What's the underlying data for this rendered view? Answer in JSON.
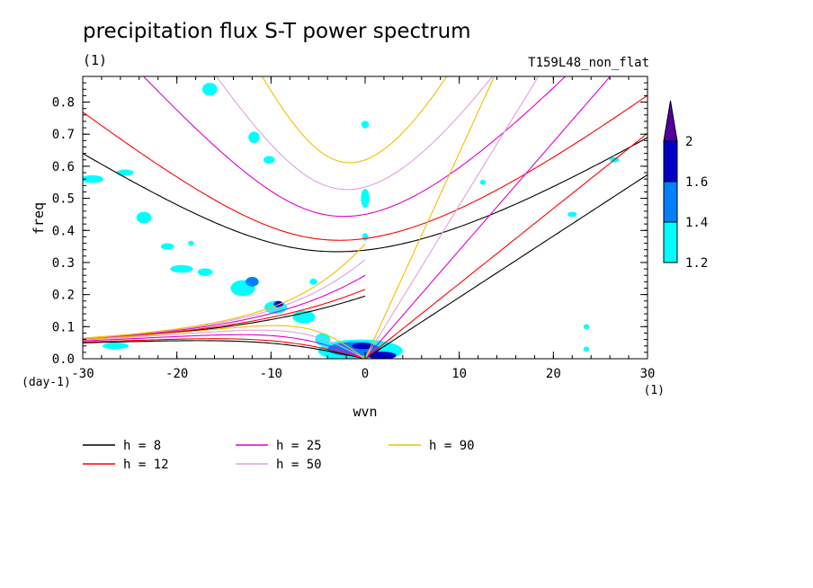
{
  "chart_data": {
    "type": "contour",
    "title": "precipitation flux S-T power spectrum",
    "subtitle_units": "(1)",
    "run_id": "T159L48_non_flat",
    "xlabel": "wvn",
    "ylabel": "freq",
    "x_units": "(1)",
    "y_units": "(day-1)",
    "xlim": [
      -30,
      30
    ],
    "ylim": [
      0,
      0.88
    ],
    "x_ticks": [
      "-30",
      "-20",
      "-10",
      "0",
      "10",
      "20",
      "30"
    ],
    "y_ticks": [
      "0.0",
      "0.1",
      "0.2",
      "0.3",
      "0.4",
      "0.5",
      "0.6",
      "0.7",
      "0.8"
    ],
    "colorbar": {
      "levels": [
        "1.2",
        "1.4",
        "1.6",
        "2"
      ],
      "colors": [
        "#00ffff",
        "#0080ff",
        "#0000c8",
        "#5000a0"
      ]
    },
    "dispersion_curves": [
      {
        "name": "h =  8",
        "h": 8,
        "color": "#000000"
      },
      {
        "name": "h = 12",
        "h": 12,
        "color": "#ff0000"
      },
      {
        "name": "h = 25",
        "h": 25,
        "color": "#e000d0"
      },
      {
        "name": "h = 50",
        "h": 50,
        "color": "#e0a0e0"
      },
      {
        "name": "h = 90",
        "h": 90,
        "color": "#f0c000"
      }
    ],
    "legend_position": "bottom-left",
    "contour_blobs": [
      {
        "x": -0.5,
        "y": 0.025,
        "rx": 4.5,
        "ry": 0.035,
        "level": 0
      },
      {
        "x": -1.2,
        "y": 0.03,
        "rx": 2.8,
        "ry": 0.022,
        "level": 1
      },
      {
        "x": 1.8,
        "y": 0.01,
        "rx": 1.5,
        "ry": 0.012,
        "level": 2
      },
      {
        "x": -0.2,
        "y": 0.04,
        "rx": 1.2,
        "ry": 0.01,
        "level": 2
      },
      {
        "x": -4.5,
        "y": 0.06,
        "rx": 0.8,
        "ry": 0.02,
        "level": 0
      },
      {
        "x": -9.5,
        "y": 0.16,
        "rx": 1.2,
        "ry": 0.02,
        "level": 0
      },
      {
        "x": -9.2,
        "y": 0.17,
        "rx": 0.5,
        "ry": 0.01,
        "level": 2
      },
      {
        "x": -13,
        "y": 0.22,
        "rx": 1.3,
        "ry": 0.025,
        "level": 0
      },
      {
        "x": -12,
        "y": 0.24,
        "rx": 0.7,
        "ry": 0.015,
        "level": 1
      },
      {
        "x": -6.5,
        "y": 0.13,
        "rx": 1.2,
        "ry": 0.02,
        "level": 0
      },
      {
        "x": -19.5,
        "y": 0.28,
        "rx": 1.2,
        "ry": 0.012,
        "level": 0
      },
      {
        "x": -17,
        "y": 0.27,
        "rx": 0.8,
        "ry": 0.012,
        "level": 0
      },
      {
        "x": -23.5,
        "y": 0.44,
        "rx": 0.8,
        "ry": 0.018,
        "level": 0
      },
      {
        "x": -21,
        "y": 0.35,
        "rx": 0.7,
        "ry": 0.01,
        "level": 0
      },
      {
        "x": -29,
        "y": 0.56,
        "rx": 1.2,
        "ry": 0.012,
        "level": 0
      },
      {
        "x": -25.5,
        "y": 0.58,
        "rx": 0.9,
        "ry": 0.01,
        "level": 0
      },
      {
        "x": -16.5,
        "y": 0.84,
        "rx": 0.8,
        "ry": 0.02,
        "level": 0
      },
      {
        "x": -11.8,
        "y": 0.69,
        "rx": 0.6,
        "ry": 0.018,
        "level": 0
      },
      {
        "x": -10.2,
        "y": 0.62,
        "rx": 0.6,
        "ry": 0.012,
        "level": 0
      },
      {
        "x": 0.0,
        "y": 0.5,
        "rx": 0.45,
        "ry": 0.03,
        "level": 0
      },
      {
        "x": 0.0,
        "y": 0.38,
        "rx": 0.3,
        "ry": 0.012,
        "level": 0
      },
      {
        "x": 0.0,
        "y": 0.73,
        "rx": 0.4,
        "ry": 0.012,
        "level": 0
      },
      {
        "x": -26.5,
        "y": 0.04,
        "rx": 1.4,
        "ry": 0.01,
        "level": 0
      },
      {
        "x": 22,
        "y": 0.45,
        "rx": 0.5,
        "ry": 0.008,
        "level": 0
      },
      {
        "x": 26.5,
        "y": 0.62,
        "rx": 0.5,
        "ry": 0.008,
        "level": 0
      },
      {
        "x": 23.5,
        "y": 0.1,
        "rx": 0.3,
        "ry": 0.008,
        "level": 0
      },
      {
        "x": 23.5,
        "y": 0.03,
        "rx": 0.3,
        "ry": 0.008,
        "level": 0
      },
      {
        "x": 12.5,
        "y": 0.55,
        "rx": 0.3,
        "ry": 0.008,
        "level": 0
      },
      {
        "x": -5.5,
        "y": 0.24,
        "rx": 0.4,
        "ry": 0.01,
        "level": 0
      },
      {
        "x": -18.5,
        "y": 0.36,
        "rx": 0.3,
        "ry": 0.008,
        "level": 0
      }
    ]
  }
}
